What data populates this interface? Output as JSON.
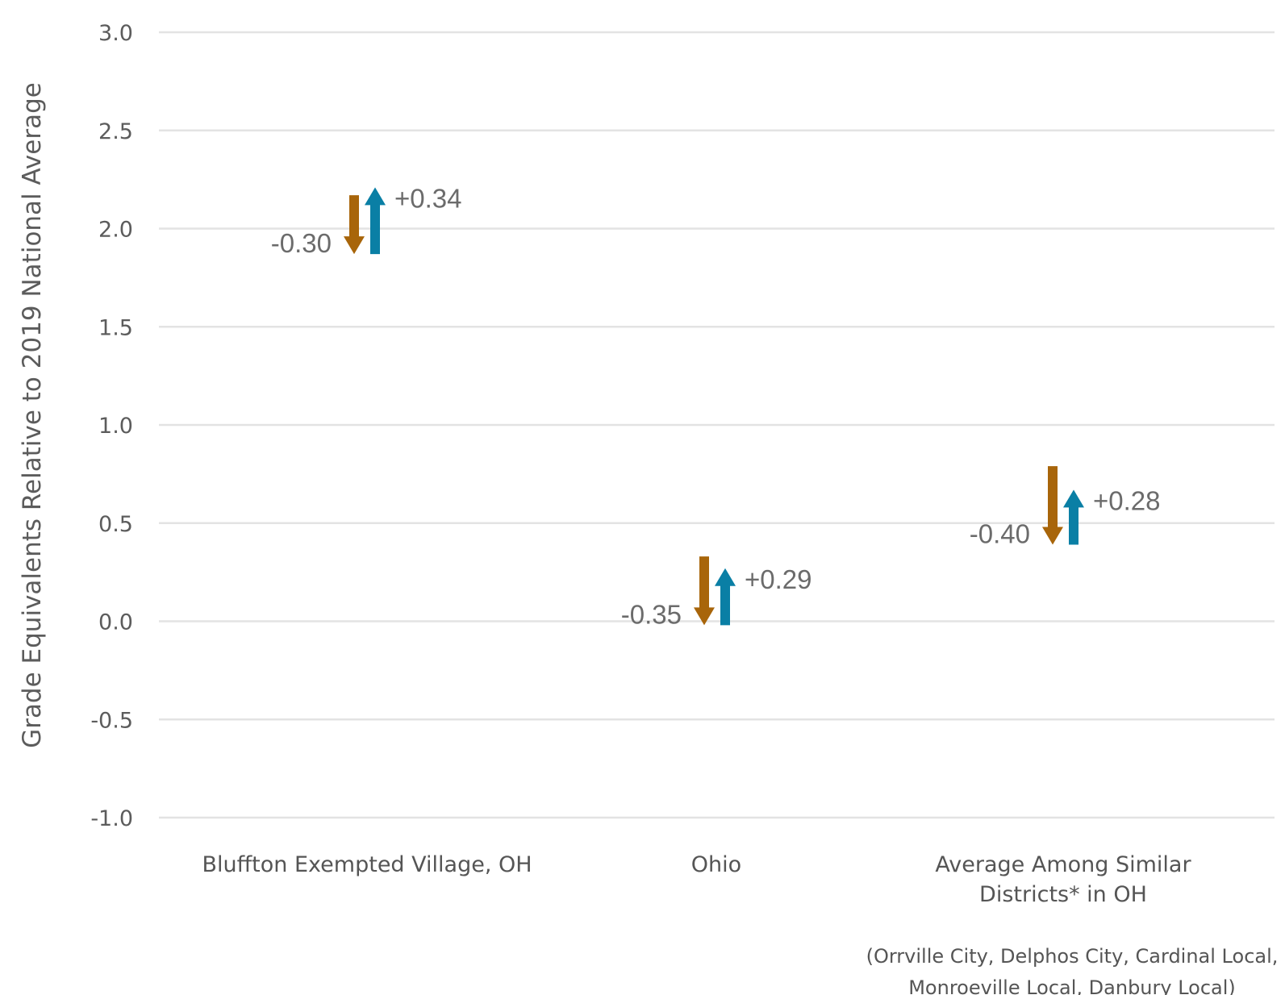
{
  "chart_data": {
    "type": "arrow",
    "ylabel": "Grade Equivalents Relative to 2019 National Average",
    "ylim": [
      -1.0,
      3.0
    ],
    "yticks": [
      "3.0",
      "2.5",
      "2.0",
      "1.5",
      "1.0",
      "0.5",
      "0.0",
      "-0.5",
      "-1.0"
    ],
    "grid": true,
    "colors": {
      "decline": "#a8650a",
      "recovery": "#0a7fa5"
    },
    "categories": [
      {
        "label_lines": [
          "Bluffton Exempted Village, OH"
        ],
        "decline": {
          "start": 2.17,
          "end": 1.87,
          "label": "-0.30"
        },
        "recovery": {
          "start": 1.87,
          "end": 2.21,
          "label": "+0.34"
        }
      },
      {
        "label_lines": [
          "Ohio"
        ],
        "decline": {
          "start": 0.33,
          "end": -0.02,
          "label": "-0.35"
        },
        "recovery": {
          "start": -0.02,
          "end": 0.27,
          "label": "+0.29"
        }
      },
      {
        "label_lines": [
          "Average Among Similar",
          "Districts* in OH"
        ],
        "decline": {
          "start": 0.79,
          "end": 0.39,
          "label": "-0.40"
        },
        "recovery": {
          "start": 0.39,
          "end": 0.67,
          "label": "+0.28"
        }
      }
    ],
    "footnote": [
      "(Orrville City, Delphos City, Cardinal Local,",
      "Monroeville Local, Danbury Local)"
    ]
  }
}
